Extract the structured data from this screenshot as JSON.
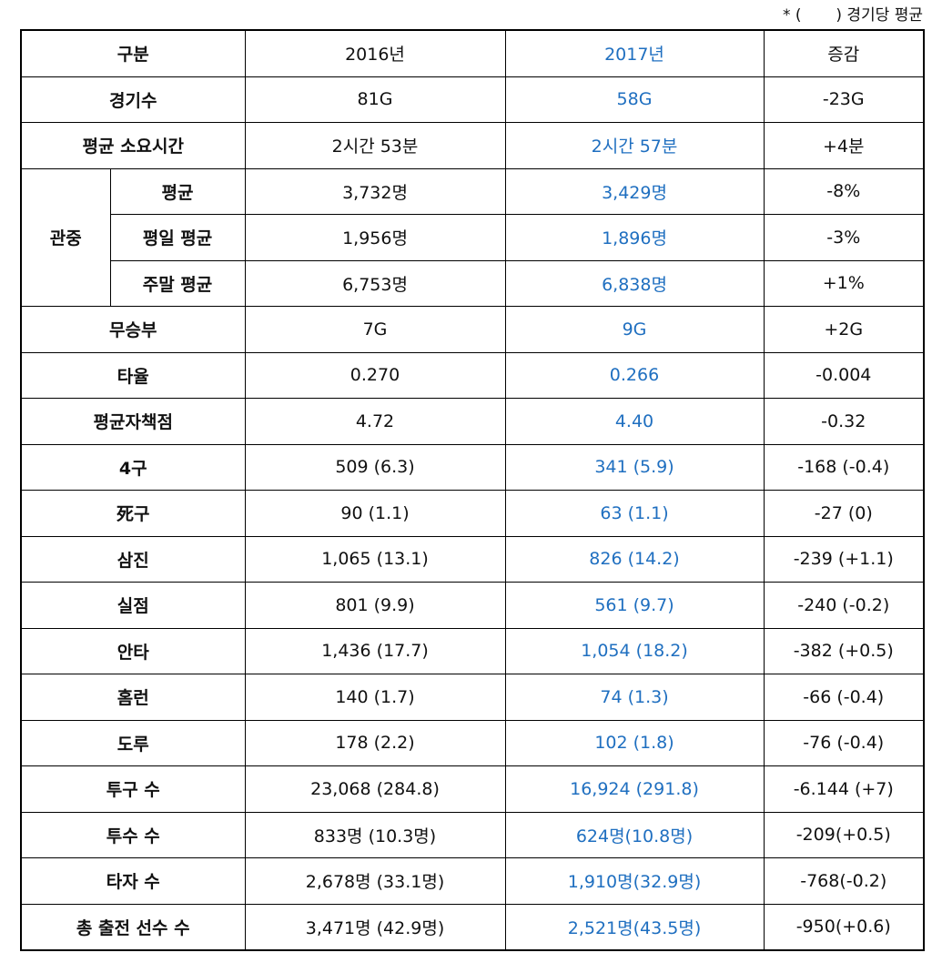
{
  "note": "* (       ) 경기당 평균",
  "header": {
    "label": "구분",
    "y2016": "2016년",
    "y2017": "2017년",
    "diff": "증감"
  },
  "rows_top": [
    {
      "label": "경기수",
      "y2016": "81G",
      "y2017": "58G",
      "diff": "-23G"
    },
    {
      "label": "평균 소요시간",
      "y2016": "2시간 53분",
      "y2017": "2시간 57분",
      "diff": "+4분"
    }
  ],
  "attendance": {
    "label": "관중",
    "rows": [
      {
        "label": "평균",
        "y2016": "3,732명",
        "y2017": "3,429명",
        "diff": "-8%"
      },
      {
        "label": "평일 평균",
        "y2016": "1,956명",
        "y2017": "1,896명",
        "diff": "-3%"
      },
      {
        "label": "주말 평균",
        "y2016": "6,753명",
        "y2017": "6,838명",
        "diff": "+1%"
      }
    ]
  },
  "rows_bottom": [
    {
      "label": "무승부",
      "y2016": "7G",
      "y2017": "9G",
      "diff": "+2G"
    },
    {
      "label": "타율",
      "y2016": "0.270",
      "y2017": "0.266",
      "diff": "-0.004"
    },
    {
      "label": "평균자책점",
      "y2016": "4.72",
      "y2017": "4.40",
      "diff": "-0.32"
    },
    {
      "label": "4구",
      "y2016": "509 (6.3)",
      "y2017": "341 (5.9)",
      "diff": "-168 (-0.4)"
    },
    {
      "label": "死구",
      "y2016": "90 (1.1)",
      "y2017": "63 (1.1)",
      "diff": "-27 (0)"
    },
    {
      "label": "삼진",
      "y2016": "1,065 (13.1)",
      "y2017": "826 (14.2)",
      "diff": "-239 (+1.1)"
    },
    {
      "label": "실점",
      "y2016": "801 (9.9)",
      "y2017": "561 (9.7)",
      "diff": "-240 (-0.2)"
    },
    {
      "label": "안타",
      "y2016": "1,436 (17.7)",
      "y2017": "1,054 (18.2)",
      "diff": "-382 (+0.5)"
    },
    {
      "label": "홈런",
      "y2016": "140 (1.7)",
      "y2017": "74 (1.3)",
      "diff": "-66 (-0.4)"
    },
    {
      "label": "도루",
      "y2016": "178 (2.2)",
      "y2017": "102 (1.8)",
      "diff": "-76 (-0.4)"
    },
    {
      "label": "투구 수",
      "y2016": "23,068 (284.8)",
      "y2017": "16,924 (291.8)",
      "diff": "-6.144 (+7)"
    },
    {
      "label": "투수 수",
      "y2016": "833명 (10.3명)",
      "y2017": "624명(10.8명)",
      "diff": "-209(+0.5)"
    },
    {
      "label": "타자 수",
      "y2016": "2,678명 (33.1명)",
      "y2017": "1,910명(32.9명)",
      "diff": "-768(-0.2)"
    },
    {
      "label": "총 출전 선수 수",
      "y2016": "3,471명 (42.9명)",
      "y2017": "2,521명(43.5명)",
      "diff": "-950(+0.6)"
    }
  ]
}
